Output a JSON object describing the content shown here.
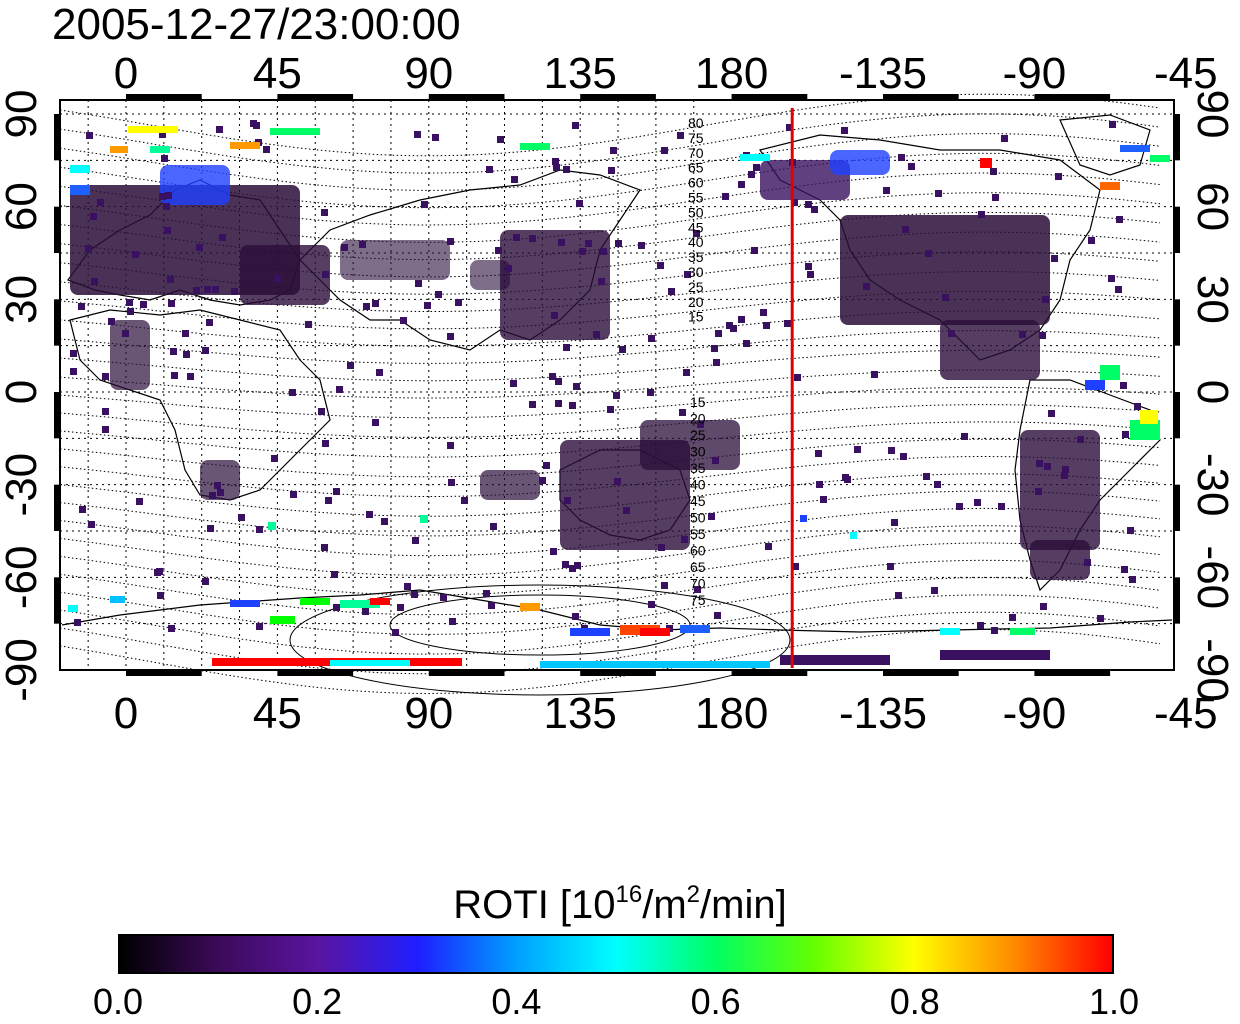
{
  "title": "2005-12-27/23:00:00",
  "map": {
    "top_lon_labels": [
      "0",
      "45",
      "90",
      "135",
      "180",
      "-135",
      "-90",
      "-45"
    ],
    "bottom_lon_labels": [
      "0",
      "45",
      "90",
      "135",
      "180",
      "-135",
      "-90",
      "-45"
    ],
    "left_lat_labels": [
      "90",
      "60",
      "30",
      "0",
      "-30",
      "-60",
      "-90"
    ],
    "right_lat_labels": [
      "90",
      "60",
      "30",
      "0",
      "-30",
      "-60",
      "-90"
    ],
    "contour_labels_north": [
      "80",
      "75",
      "70",
      "65",
      "60",
      "55",
      "50",
      "45",
      "40",
      "35",
      "30",
      "25",
      "20",
      "15"
    ],
    "contour_labels_south": [
      "15",
      "20",
      "25",
      "30",
      "35",
      "40",
      "45",
      "50",
      "55",
      "60",
      "65",
      "70",
      "75"
    ],
    "colors": {
      "frame": "#000000",
      "terminator_line": "#e00000",
      "gridline": "#000000"
    },
    "terminator_longitude": -162
  },
  "colorbar": {
    "label_prefix": "ROTI  [10",
    "label_exp1": "16",
    "label_mid": "/m",
    "label_exp2": "2",
    "label_suffix": "/min]",
    "ticks": [
      "0.0",
      "0.2",
      "0.4",
      "0.6",
      "0.8",
      "1.0"
    ],
    "range": [
      0.0,
      1.0
    ],
    "gradient_stops": [
      "#000000",
      "#3c0a5a",
      "#5a14a0",
      "#1e1eff",
      "#00a0ff",
      "#00ffff",
      "#00ff64",
      "#64ff00",
      "#ffff00",
      "#ff8c00",
      "#ff0000"
    ]
  }
}
